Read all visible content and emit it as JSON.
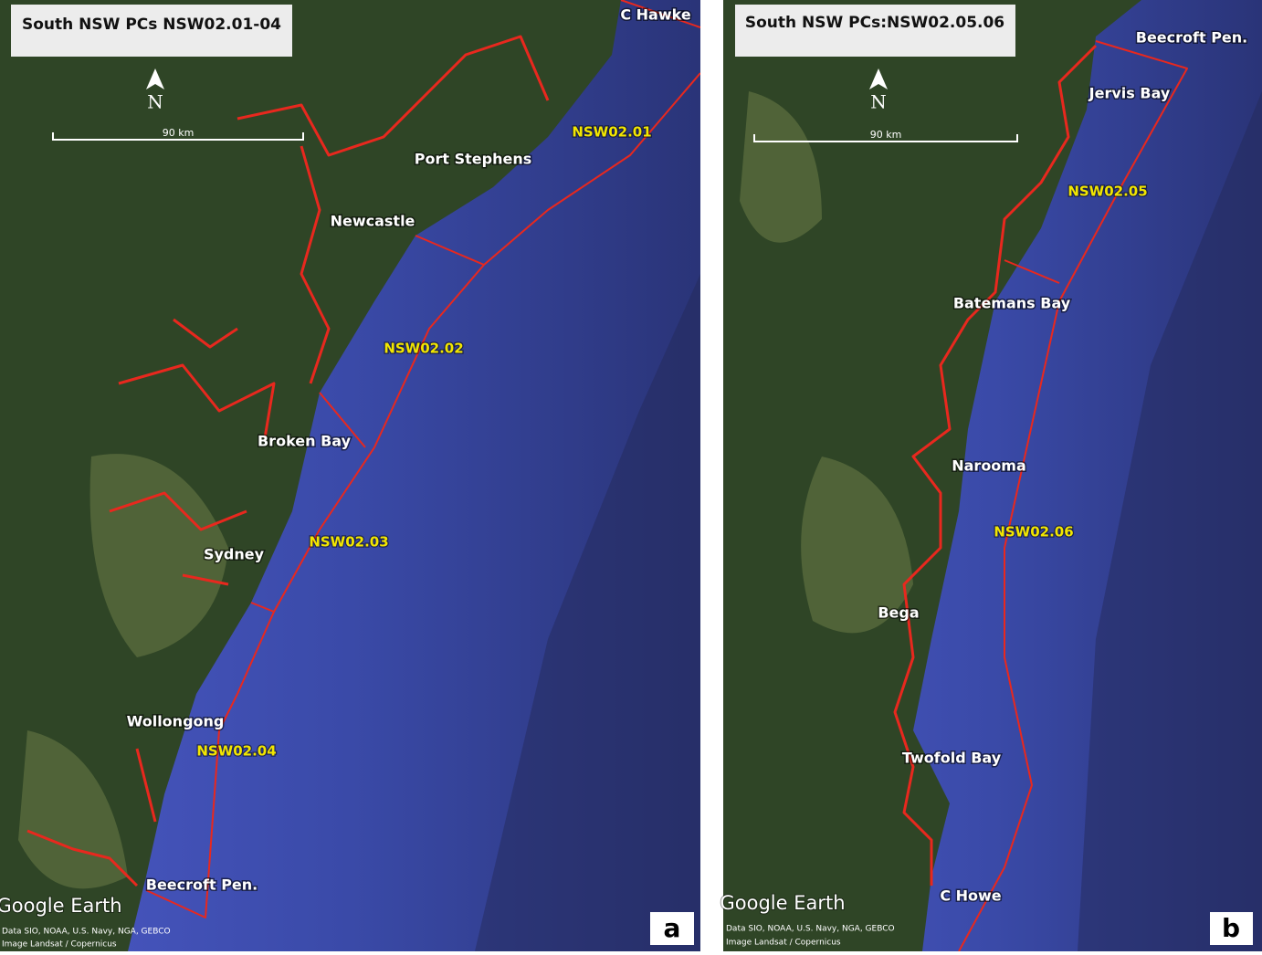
{
  "panels": [
    {
      "title": "South NSW PCs NSW02.01-04",
      "north": "N",
      "scale": "90 km",
      "places": [
        "C Hawke",
        "Port Stephens",
        "Newcastle",
        "Broken Bay",
        "Sydney",
        "Wollongong",
        "Beecroft Pen."
      ],
      "regions": [
        "NSW02.01",
        "NSW02.02",
        "NSW02.03",
        "NSW02.04"
      ],
      "brand": "Google Earth",
      "credits": [
        "Data SIO, NOAA, U.S. Navy, NGA, GEBCO",
        "Image Landsat / Copernicus"
      ],
      "letter": "a"
    },
    {
      "title": "South NSW PCs:NSW02.05.06",
      "north": "N",
      "scale": "90 km",
      "places": [
        "Beecroft Pen.",
        "Jervis Bay",
        "Batemans Bay",
        "Narooma",
        "Bega",
        "Twofold Bay",
        "C Howe"
      ],
      "regions": [
        "NSW02.05",
        "NSW02.06"
      ],
      "brand": "Google Earth",
      "credits": [
        "Data SIO, NOAA, U.S. Navy, NGA, GEBCO",
        "Image Landsat / Copernicus"
      ],
      "letter": "b"
    }
  ]
}
